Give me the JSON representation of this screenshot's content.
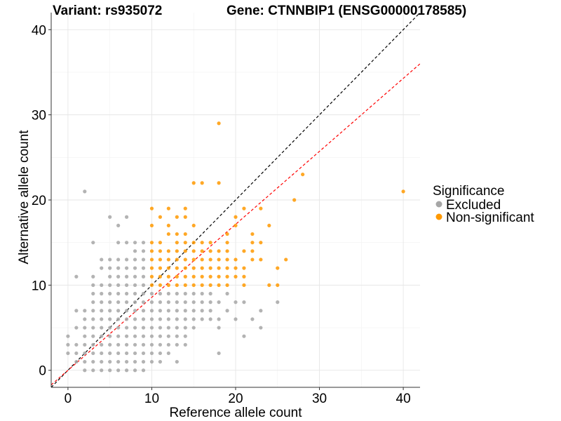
{
  "title_left": "Variant: rs935072",
  "title_right": "Gene: CTNNBIP1 (ENSG00000178585)",
  "chart_data": {
    "type": "scatter",
    "xlabel": "Reference allele count",
    "ylabel": "Alternative allele count",
    "xlim": [
      -2,
      42
    ],
    "ylim": [
      -2,
      42
    ],
    "xticks": [
      "0",
      "10",
      "20",
      "30",
      "40"
    ],
    "yticks": [
      "0",
      "10",
      "20",
      "30",
      "40"
    ],
    "grid": true,
    "legend": {
      "title": "Significance",
      "position": "right",
      "entries": [
        "Excluded",
        "Non-significant"
      ]
    },
    "colors": {
      "Excluded": "#a6a6a6",
      "Non-significant": "#ff9900"
    },
    "reference_lines": [
      {
        "slope": 1.0,
        "intercept": 0,
        "color": "#000000",
        "style": "dashed"
      },
      {
        "slope": 0.857,
        "intercept": 0,
        "color": "#ff0000",
        "style": "dashed"
      }
    ],
    "series": [
      {
        "name": "Excluded",
        "points": [
          [
            0,
            2
          ],
          [
            0,
            3
          ],
          [
            0,
            4
          ],
          [
            1,
            1
          ],
          [
            1,
            2
          ],
          [
            1,
            3
          ],
          [
            1,
            5
          ],
          [
            1,
            7
          ],
          [
            1,
            11
          ],
          [
            2,
            0
          ],
          [
            2,
            1
          ],
          [
            2,
            2
          ],
          [
            2,
            3
          ],
          [
            2,
            4
          ],
          [
            2,
            5
          ],
          [
            2,
            6
          ],
          [
            2,
            7
          ],
          [
            2,
            21
          ],
          [
            3,
            0
          ],
          [
            3,
            1
          ],
          [
            3,
            2
          ],
          [
            3,
            3
          ],
          [
            3,
            4
          ],
          [
            3,
            5
          ],
          [
            3,
            6
          ],
          [
            3,
            7
          ],
          [
            3,
            8
          ],
          [
            3,
            9
          ],
          [
            3,
            10
          ],
          [
            3,
            11
          ],
          [
            3,
            15
          ],
          [
            4,
            0
          ],
          [
            4,
            1
          ],
          [
            4,
            2
          ],
          [
            4,
            3
          ],
          [
            4,
            4
          ],
          [
            4,
            5
          ],
          [
            4,
            6
          ],
          [
            4,
            7
          ],
          [
            4,
            8
          ],
          [
            4,
            9
          ],
          [
            4,
            10
          ],
          [
            4,
            12
          ],
          [
            4,
            13
          ],
          [
            5,
            0
          ],
          [
            5,
            1
          ],
          [
            5,
            2
          ],
          [
            5,
            3
          ],
          [
            5,
            4
          ],
          [
            5,
            5
          ],
          [
            5,
            6
          ],
          [
            5,
            7
          ],
          [
            5,
            8
          ],
          [
            5,
            9
          ],
          [
            5,
            10
          ],
          [
            5,
            11
          ],
          [
            5,
            12
          ],
          [
            5,
            13
          ],
          [
            5,
            18
          ],
          [
            6,
            0
          ],
          [
            6,
            1
          ],
          [
            6,
            2
          ],
          [
            6,
            3
          ],
          [
            6,
            4
          ],
          [
            6,
            5
          ],
          [
            6,
            6
          ],
          [
            6,
            7
          ],
          [
            6,
            8
          ],
          [
            6,
            9
          ],
          [
            6,
            10
          ],
          [
            6,
            11
          ],
          [
            6,
            12
          ],
          [
            6,
            13
          ],
          [
            6,
            15
          ],
          [
            6,
            17
          ],
          [
            7,
            0
          ],
          [
            7,
            1
          ],
          [
            7,
            2
          ],
          [
            7,
            3
          ],
          [
            7,
            4
          ],
          [
            7,
            5
          ],
          [
            7,
            6
          ],
          [
            7,
            7
          ],
          [
            7,
            8
          ],
          [
            7,
            9
          ],
          [
            7,
            10
          ],
          [
            7,
            11
          ],
          [
            7,
            12
          ],
          [
            7,
            13
          ],
          [
            7,
            15
          ],
          [
            7,
            18
          ],
          [
            8,
            0
          ],
          [
            8,
            1
          ],
          [
            8,
            2
          ],
          [
            8,
            3
          ],
          [
            8,
            4
          ],
          [
            8,
            5
          ],
          [
            8,
            6
          ],
          [
            8,
            7
          ],
          [
            8,
            8
          ],
          [
            8,
            9
          ],
          [
            8,
            10
          ],
          [
            8,
            11
          ],
          [
            8,
            12
          ],
          [
            8,
            13
          ],
          [
            8,
            14
          ],
          [
            8,
            15
          ],
          [
            9,
            0
          ],
          [
            9,
            1
          ],
          [
            9,
            2
          ],
          [
            9,
            3
          ],
          [
            9,
            4
          ],
          [
            9,
            5
          ],
          [
            9,
            6
          ],
          [
            9,
            7
          ],
          [
            9,
            8
          ],
          [
            9,
            9
          ],
          [
            9,
            10
          ],
          [
            9,
            11
          ],
          [
            9,
            12
          ],
          [
            9,
            13
          ],
          [
            9,
            14
          ],
          [
            9,
            15
          ],
          [
            10,
            1
          ],
          [
            10,
            2
          ],
          [
            10,
            3
          ],
          [
            10,
            4
          ],
          [
            10,
            5
          ],
          [
            10,
            6
          ],
          [
            10,
            7
          ],
          [
            10,
            8
          ],
          [
            10,
            9
          ],
          [
            11,
            1
          ],
          [
            11,
            2
          ],
          [
            11,
            3
          ],
          [
            11,
            4
          ],
          [
            11,
            5
          ],
          [
            11,
            6
          ],
          [
            11,
            7
          ],
          [
            11,
            8
          ],
          [
            11,
            9
          ],
          [
            12,
            2
          ],
          [
            12,
            3
          ],
          [
            12,
            4
          ],
          [
            12,
            5
          ],
          [
            12,
            6
          ],
          [
            12,
            7
          ],
          [
            12,
            8
          ],
          [
            12,
            9
          ],
          [
            13,
            1
          ],
          [
            13,
            3
          ],
          [
            13,
            4
          ],
          [
            13,
            5
          ],
          [
            13,
            6
          ],
          [
            13,
            7
          ],
          [
            13,
            8
          ],
          [
            13,
            9
          ],
          [
            14,
            3
          ],
          [
            14,
            4
          ],
          [
            14,
            5
          ],
          [
            14,
            6
          ],
          [
            14,
            7
          ],
          [
            14,
            8
          ],
          [
            14,
            9
          ],
          [
            15,
            5
          ],
          [
            15,
            6
          ],
          [
            15,
            7
          ],
          [
            15,
            8
          ],
          [
            15,
            9
          ],
          [
            16,
            6
          ],
          [
            16,
            7
          ],
          [
            16,
            8
          ],
          [
            16,
            9
          ],
          [
            17,
            6
          ],
          [
            17,
            7
          ],
          [
            17,
            8
          ],
          [
            17,
            9
          ],
          [
            18,
            2
          ],
          [
            18,
            5
          ],
          [
            18,
            6
          ],
          [
            18,
            8
          ],
          [
            19,
            7
          ],
          [
            19,
            9
          ],
          [
            20,
            6
          ],
          [
            20,
            8
          ],
          [
            21,
            4
          ],
          [
            21,
            8
          ],
          [
            22,
            6
          ],
          [
            23,
            5
          ],
          [
            23,
            7
          ],
          [
            25,
            8
          ]
        ]
      },
      {
        "name": "Non-significant",
        "points": [
          [
            10,
            10
          ],
          [
            10,
            11
          ],
          [
            10,
            12
          ],
          [
            10,
            13
          ],
          [
            10,
            14
          ],
          [
            10,
            15
          ],
          [
            10,
            17
          ],
          [
            10,
            19
          ],
          [
            11,
            10
          ],
          [
            11,
            11
          ],
          [
            11,
            12
          ],
          [
            11,
            13
          ],
          [
            11,
            14
          ],
          [
            11,
            15
          ],
          [
            11,
            18
          ],
          [
            12,
            10
          ],
          [
            12,
            11
          ],
          [
            12,
            12
          ],
          [
            12,
            13
          ],
          [
            12,
            14
          ],
          [
            12,
            16
          ],
          [
            12,
            17
          ],
          [
            12,
            19
          ],
          [
            13,
            10
          ],
          [
            13,
            11
          ],
          [
            13,
            12
          ],
          [
            13,
            13
          ],
          [
            13,
            14
          ],
          [
            13,
            15
          ],
          [
            13,
            16
          ],
          [
            13,
            18
          ],
          [
            14,
            10
          ],
          [
            14,
            11
          ],
          [
            14,
            12
          ],
          [
            14,
            13
          ],
          [
            14,
            14
          ],
          [
            14,
            15
          ],
          [
            14,
            16
          ],
          [
            14,
            18
          ],
          [
            14,
            19
          ],
          [
            15,
            10
          ],
          [
            15,
            11
          ],
          [
            15,
            12
          ],
          [
            15,
            13
          ],
          [
            15,
            14
          ],
          [
            15,
            15
          ],
          [
            15,
            17
          ],
          [
            15,
            22
          ],
          [
            16,
            10
          ],
          [
            16,
            11
          ],
          [
            16,
            12
          ],
          [
            16,
            13
          ],
          [
            16,
            14
          ],
          [
            16,
            15
          ],
          [
            16,
            22
          ],
          [
            17,
            10
          ],
          [
            17,
            11
          ],
          [
            17,
            12
          ],
          [
            17,
            13
          ],
          [
            17,
            14
          ],
          [
            17,
            15
          ],
          [
            18,
            10
          ],
          [
            18,
            11
          ],
          [
            18,
            12
          ],
          [
            18,
            13
          ],
          [
            18,
            14
          ],
          [
            18,
            22
          ],
          [
            18,
            29
          ],
          [
            19,
            10
          ],
          [
            19,
            11
          ],
          [
            19,
            12
          ],
          [
            19,
            13
          ],
          [
            19,
            14
          ],
          [
            19,
            15
          ],
          [
            19,
            16
          ],
          [
            20,
            11
          ],
          [
            20,
            12
          ],
          [
            20,
            13
          ],
          [
            20,
            17
          ],
          [
            20,
            18
          ],
          [
            21,
            10
          ],
          [
            21,
            11
          ],
          [
            21,
            12
          ],
          [
            21,
            14
          ],
          [
            21,
            19
          ],
          [
            22,
            13
          ],
          [
            22,
            14
          ],
          [
            22,
            15
          ],
          [
            22,
            16
          ],
          [
            23,
            13
          ],
          [
            23,
            15
          ],
          [
            23,
            19
          ],
          [
            24,
            10
          ],
          [
            24,
            17
          ],
          [
            25,
            10
          ],
          [
            25,
            12
          ],
          [
            26,
            13
          ],
          [
            27,
            20
          ],
          [
            28,
            23
          ],
          [
            40,
            21
          ]
        ]
      }
    ]
  }
}
